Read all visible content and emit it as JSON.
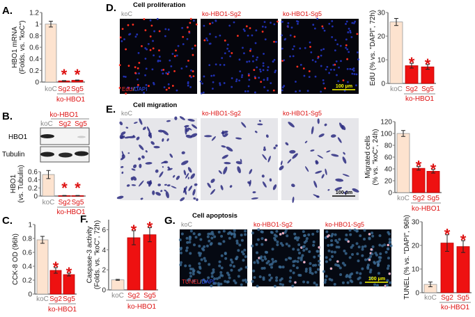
{
  "panels": {
    "A": {
      "label": "A."
    },
    "B": {
      "label": "B.",
      "header_group": "ko-HBO1",
      "lanes": [
        "koC",
        "Sg2",
        "Sg5"
      ],
      "blots": [
        "HBO1",
        "Tubulin"
      ]
    },
    "C": {
      "label": "C."
    },
    "D": {
      "label": "D.",
      "title": "Cell proliferation",
      "images": [
        "koC",
        "ko-HBO1-Sg2",
        "ko-HBO1-Sg5"
      ],
      "stain_a": "EdU",
      "stain_sep": "/",
      "stain_b": "DAPI",
      "scale_bar": "100 μm"
    },
    "E": {
      "label": "E.",
      "title": "Cell migration",
      "images": [
        "koC",
        "ko-HBO1-Sg2",
        "ko-HBO1-Sg5"
      ],
      "scale_bar": "100 μm"
    },
    "F": {
      "label": "F."
    },
    "G": {
      "label": "G.",
      "title": "Cell apoptosis",
      "images": [
        "koC",
        "ko-HBO1-Sg2",
        "ko-HBO1-Sg5"
      ],
      "stain_a": "TUNEL",
      "stain_sep": "/",
      "stain_b": "DAPI",
      "scale_bar": "100 μm"
    }
  },
  "colors": {
    "control": "#fde3cf",
    "knockout": "#ee1111",
    "significance": "#dd1111"
  },
  "chart_data": [
    {
      "panel": "A",
      "type": "bar",
      "categories": [
        "koC",
        "Sg2",
        "Sg5"
      ],
      "group_label": "ko-HBO1",
      "ylabel": [
        "HBO1 mRNA",
        "(Folds. vs. \"koC\")"
      ],
      "ylim": [
        0,
        1.2
      ],
      "yticks": [
        "0",
        "0.2",
        "0.4",
        "0.6",
        "0.8",
        "1",
        "1.2"
      ],
      "values": [
        1.0,
        0.02,
        0.03
      ],
      "errors": [
        0.05,
        0.005,
        0.005
      ],
      "significant": [
        false,
        true,
        true
      ],
      "significance_mark": "*"
    },
    {
      "panel": "B",
      "type": "bar",
      "categories": [
        "koC",
        "Sg2",
        "Sg5"
      ],
      "group_label": "ko-HBO1",
      "ylabel": [
        "HBO1",
        "(vs. Tubulin)"
      ],
      "ylim": [
        0,
        0.6
      ],
      "yticks": [
        "0",
        "0.2",
        "0.4",
        "0.6"
      ],
      "values": [
        0.53,
        0.01,
        0.01
      ],
      "errors": [
        0.1,
        0.005,
        0.005
      ],
      "significant": [
        false,
        true,
        true
      ],
      "significance_mark": "*"
    },
    {
      "panel": "C",
      "type": "bar",
      "categories": [
        "koC",
        "Sg2",
        "Sg5"
      ],
      "group_label": "ko-HBO1",
      "ylabel": [
        "CCK-8 OD (96h)"
      ],
      "ylim": [
        0,
        1
      ],
      "yticks": [
        "0",
        "0.2",
        "0.4",
        "0.6",
        "0.8",
        "1"
      ],
      "values": [
        0.78,
        0.34,
        0.28
      ],
      "errors": [
        0.05,
        0.04,
        0.02
      ],
      "significant": [
        false,
        true,
        true
      ],
      "significance_mark": "*"
    },
    {
      "panel": "F",
      "type": "bar",
      "categories": [
        "koC",
        "Sg2",
        "Sg5"
      ],
      "group_label": "ko-HBO1",
      "ylabel": [
        "Caspase-3 activity",
        "(Folds. vs. \"koC\", 72h)"
      ],
      "ylim": [
        0,
        7
      ],
      "yticks": [
        "0",
        "2",
        "4",
        "6"
      ],
      "tickvals": [
        0,
        2,
        4,
        6
      ],
      "values": [
        1.0,
        5.2,
        5.5
      ],
      "errors": [
        0.05,
        0.7,
        0.7
      ],
      "significant": [
        false,
        true,
        true
      ],
      "significance_mark": "*"
    },
    {
      "panel": "D",
      "type": "bar",
      "categories": [
        "koC",
        "Sg2",
        "Sg5"
      ],
      "group_label": "ko-HBO1",
      "ylabel": [
        "EdU (% vs. \"DAPI\", 72h)"
      ],
      "ylim": [
        0,
        30
      ],
      "yticks": [
        "0",
        "10",
        "20",
        "30"
      ],
      "values": [
        26,
        7.5,
        7
      ],
      "errors": [
        1.5,
        1,
        1
      ],
      "significant": [
        false,
        true,
        true
      ],
      "significance_mark": "*"
    },
    {
      "panel": "E",
      "type": "bar",
      "categories": [
        "koC",
        "Sg2",
        "Sg5"
      ],
      "group_label": "ko-HBO1",
      "ylabel": [
        "Migrated cells",
        "(% vs. \"koC\", 24h)"
      ],
      "ylim": [
        0,
        120
      ],
      "yticks": [
        "0",
        "20",
        "40",
        "60",
        "80",
        "100",
        "120"
      ],
      "values": [
        100,
        41,
        36
      ],
      "errors": [
        5,
        3,
        3
      ],
      "significant": [
        false,
        true,
        true
      ],
      "significance_mark": "*"
    },
    {
      "panel": "G",
      "type": "bar",
      "categories": [
        "koC",
        "Sg2",
        "Sg5"
      ],
      "group_label": "ko-HBO1",
      "ylabel": [
        "TUNEL (% vs. \"DAPI\", 96h)"
      ],
      "ylim": [
        0,
        30
      ],
      "yticks": [
        "0",
        "10",
        "20",
        "30"
      ],
      "values": [
        3.5,
        21,
        19.5
      ],
      "errors": [
        1,
        3.5,
        2.5
      ],
      "significant": [
        false,
        true,
        true
      ],
      "significance_mark": "*"
    }
  ]
}
